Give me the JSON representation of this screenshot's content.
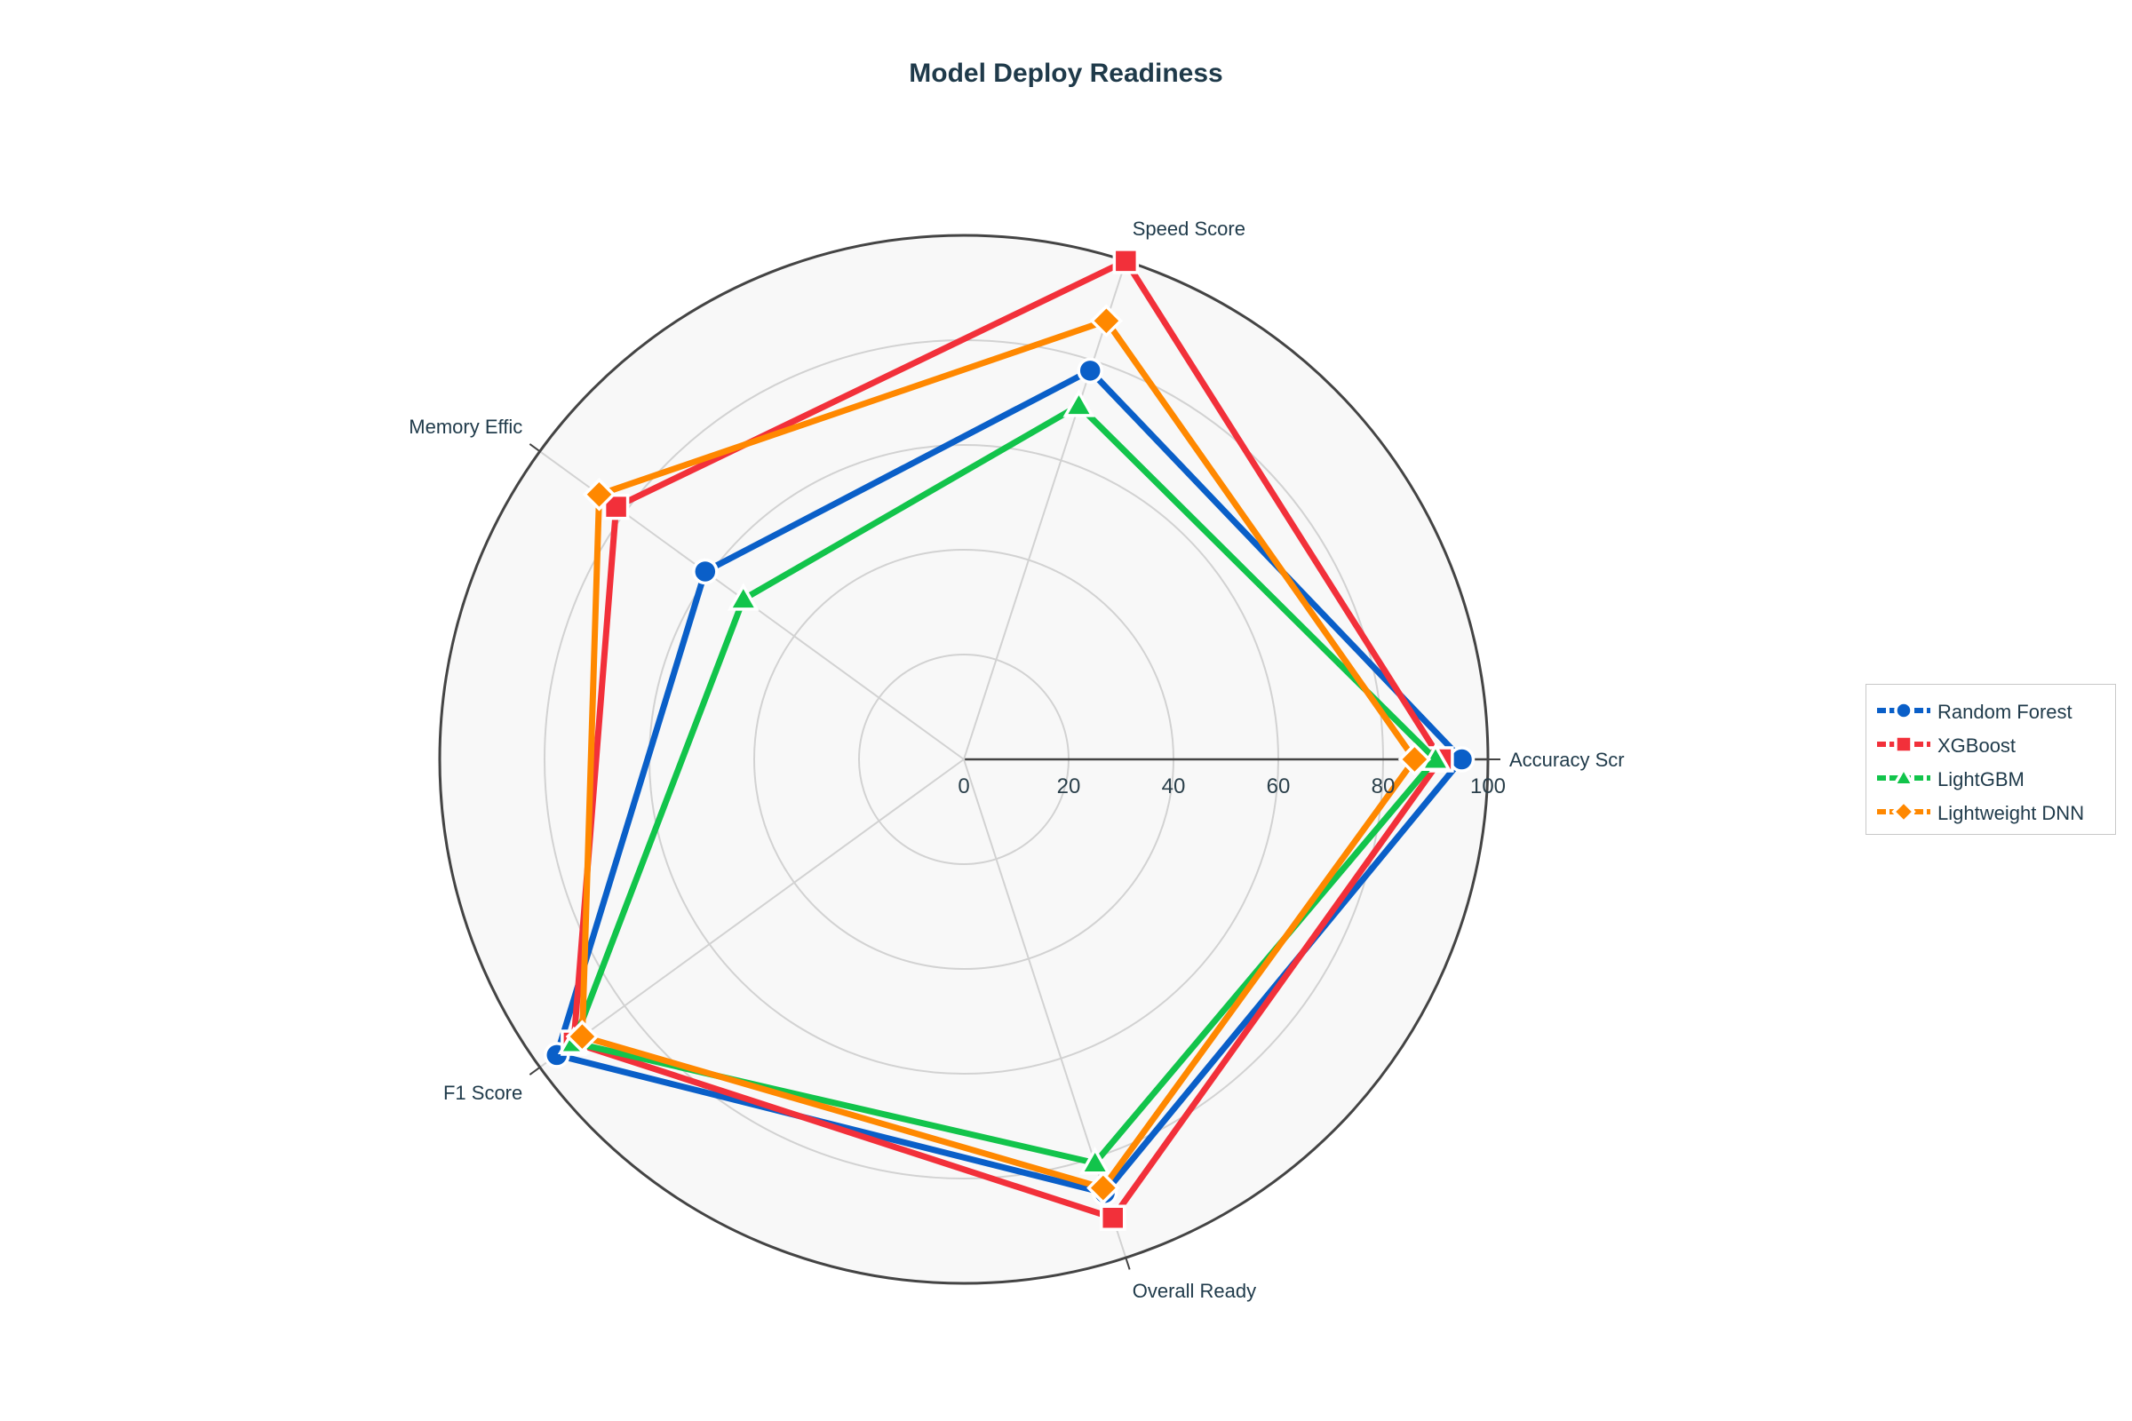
{
  "chart_data": {
    "type": "radar",
    "title": "Model Deploy Readiness",
    "axes": [
      "Accuracy Scr",
      "Speed Score",
      "Memory Effic",
      "F1 Score",
      "Overall Ready"
    ],
    "radial_range": [
      0,
      100
    ],
    "radial_ticks": [
      "0",
      "20",
      "40",
      "60",
      "80",
      "100"
    ],
    "grid": true,
    "legend_position": "right",
    "series": [
      {
        "name": "Random Forest",
        "color": "#0a5fc8",
        "marker": "circle",
        "values": [
          95,
          78,
          61,
          96,
          87
        ]
      },
      {
        "name": "XGBoost",
        "color": "#f2303a",
        "marker": "square",
        "values": [
          91,
          100,
          82,
          92,
          92
        ]
      },
      {
        "name": "LightGBM",
        "color": "#12c44b",
        "marker": "triangle",
        "values": [
          90,
          71,
          52,
          92,
          81
        ]
      },
      {
        "name": "Lightweight DNN",
        "color": "#ff8800",
        "marker": "diamond",
        "values": [
          86,
          88,
          86,
          90,
          86
        ]
      }
    ]
  }
}
